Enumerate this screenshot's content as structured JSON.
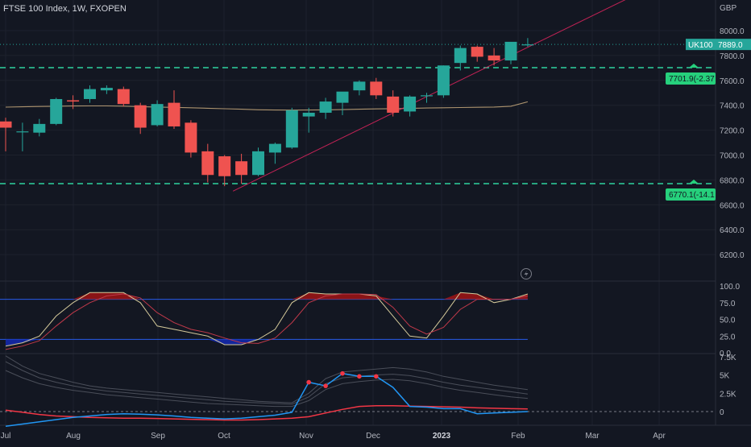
{
  "header": {
    "symbol_line": "FTSE 100 Index, 1W, FXOPEN"
  },
  "currency": "GBP",
  "chart_data": {
    "type": "candlestick",
    "title": "FTSE 100 Index, 1W, FXOPEN",
    "price_axis": {
      "ticks": [
        "8000.0",
        "7800.0",
        "7600.0",
        "7400.0",
        "7200.0",
        "7000.0",
        "6800.0",
        "6600.0",
        "6400.0",
        "6200.0"
      ],
      "ylim": [
        6050,
        8460
      ]
    },
    "time_axis": {
      "labels": [
        "Jul",
        "Aug",
        "Sep",
        "Oct",
        "Nov",
        "Dec",
        "2023",
        "Feb",
        "Mar",
        "Apr"
      ]
    },
    "candles": [
      {
        "o": 7270,
        "h": 7300,
        "l": 7030,
        "c": 7220
      },
      {
        "o": 7190,
        "h": 7260,
        "l": 7030,
        "c": 7190
      },
      {
        "o": 7180,
        "h": 7290,
        "l": 7150,
        "c": 7250
      },
      {
        "o": 7250,
        "h": 7460,
        "l": 7240,
        "c": 7450
      },
      {
        "o": 7440,
        "h": 7480,
        "l": 7370,
        "c": 7430
      },
      {
        "o": 7450,
        "h": 7560,
        "l": 7420,
        "c": 7530
      },
      {
        "o": 7520,
        "h": 7560,
        "l": 7490,
        "c": 7540
      },
      {
        "o": 7530,
        "h": 7550,
        "l": 7390,
        "c": 7410
      },
      {
        "o": 7400,
        "h": 7420,
        "l": 7170,
        "c": 7220
      },
      {
        "o": 7240,
        "h": 7440,
        "l": 7230,
        "c": 7410
      },
      {
        "o": 7420,
        "h": 7520,
        "l": 7210,
        "c": 7230
      },
      {
        "o": 7260,
        "h": 7280,
        "l": 6980,
        "c": 7020
      },
      {
        "o": 7030,
        "h": 7090,
        "l": 6780,
        "c": 6840
      },
      {
        "o": 6990,
        "h": 7000,
        "l": 6750,
        "c": 6830
      },
      {
        "o": 6950,
        "h": 7010,
        "l": 6770,
        "c": 6840
      },
      {
        "o": 6840,
        "h": 7060,
        "l": 6830,
        "c": 7030
      },
      {
        "o": 7020,
        "h": 7100,
        "l": 6930,
        "c": 7090
      },
      {
        "o": 7060,
        "h": 7380,
        "l": 7050,
        "c": 7360
      },
      {
        "o": 7310,
        "h": 7380,
        "l": 7180,
        "c": 7340
      },
      {
        "o": 7340,
        "h": 7460,
        "l": 7290,
        "c": 7430
      },
      {
        "o": 7420,
        "h": 7500,
        "l": 7320,
        "c": 7510
      },
      {
        "o": 7520,
        "h": 7600,
        "l": 7480,
        "c": 7590
      },
      {
        "o": 7590,
        "h": 7620,
        "l": 7450,
        "c": 7480
      },
      {
        "o": 7470,
        "h": 7520,
        "l": 7310,
        "c": 7340
      },
      {
        "o": 7350,
        "h": 7480,
        "l": 7310,
        "c": 7470
      },
      {
        "o": 7480,
        "h": 7500,
        "l": 7420,
        "c": 7480
      },
      {
        "o": 7480,
        "h": 7720,
        "l": 7460,
        "c": 7720
      },
      {
        "o": 7740,
        "h": 7880,
        "l": 7680,
        "c": 7860
      },
      {
        "o": 7870,
        "h": 7880,
        "l": 7750,
        "c": 7790
      },
      {
        "o": 7800,
        "h": 7860,
        "l": 7720,
        "c": 7760
      },
      {
        "o": 7760,
        "h": 7900,
        "l": 7730,
        "c": 7910
      },
      {
        "o": 7889,
        "h": 7940,
        "l": 7870,
        "c": 7889
      }
    ],
    "moving_average": [
      7385,
      7388,
      7390,
      7392,
      7394,
      7395,
      7395,
      7393,
      7389,
      7386,
      7383,
      7380,
      7376,
      7372,
      7368,
      7364,
      7362,
      7361,
      7362,
      7363,
      7365,
      7368,
      7371,
      7373,
      7375,
      7378,
      7380,
      7382,
      7384,
      7386,
      7392,
      7428
    ],
    "horizontal_levels": [
      {
        "price": 7701.9,
        "label": "7701.9(-2.37"
      },
      {
        "price": 6770.1,
        "label": "6770.1(-14.1"
      }
    ],
    "trendline": {
      "from_index": 13.5,
      "from_price": 6710,
      "to_index": 40.0,
      "to_price": 8460
    },
    "last_price": {
      "symbol": "UK100",
      "value": "7889.0",
      "price": 7889
    },
    "stochastic": {
      "ticks": [
        "100.0",
        "75.0",
        "50.0",
        "25.0",
        "0.0"
      ],
      "upper_band": 80,
      "lower_band": 20,
      "k": [
        10,
        15,
        25,
        55,
        75,
        90,
        90,
        90,
        75,
        40,
        35,
        30,
        25,
        12,
        12,
        20,
        35,
        75,
        90,
        88,
        88,
        88,
        85,
        55,
        25,
        22,
        55,
        90,
        88,
        75,
        80,
        88
      ],
      "d": [
        5,
        10,
        18,
        40,
        60,
        75,
        85,
        88,
        82,
        60,
        45,
        35,
        30,
        22,
        15,
        14,
        22,
        45,
        75,
        85,
        88,
        88,
        87,
        68,
        40,
        28,
        38,
        65,
        80,
        80,
        80,
        85
      ]
    },
    "volume_indicator": {
      "ticks": [
        "7.5K",
        "5K",
        "2.5K",
        "0"
      ],
      "blue": [
        -2000,
        -1700,
        -1400,
        -1100,
        -800,
        -600,
        -400,
        -300,
        -350,
        -450,
        -600,
        -800,
        -900,
        -1000,
        -900,
        -700,
        -500,
        -100,
        4000,
        3500,
        5200,
        4800,
        4800,
        3300,
        700,
        600,
        400,
        400,
        -300,
        -200,
        -100,
        0
      ],
      "red": [
        200,
        -100,
        -400,
        -600,
        -700,
        -800,
        -850,
        -900,
        -900,
        -950,
        -1000,
        -1050,
        -1100,
        -1150,
        -1150,
        -1100,
        -1000,
        -900,
        -700,
        -200,
        300,
        700,
        800,
        800,
        750,
        700,
        650,
        600,
        500,
        450,
        400,
        350
      ],
      "marked_points": [
        18,
        19,
        20,
        21,
        22
      ]
    }
  }
}
